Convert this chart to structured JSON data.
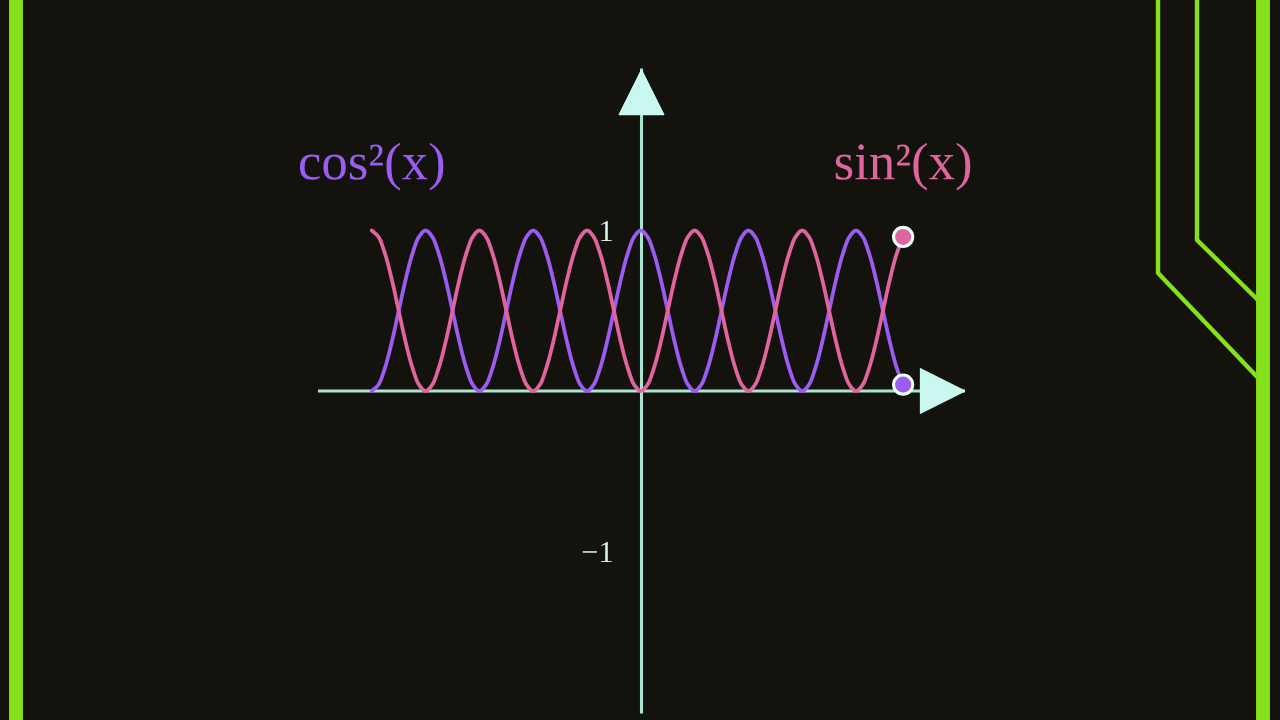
{
  "chart_data": {
    "type": "line",
    "categories": [
      null,
      null,
      null,
      null,
      null,
      null,
      null,
      null,
      null,
      null,
      null,
      null,
      null,
      null,
      null,
      null,
      null,
      null,
      null,
      null,
      null,
      null,
      null,
      null,
      null,
      null,
      null,
      null,
      null,
      null,
      null,
      null,
      null,
      null,
      null,
      null,
      null,
      null,
      null,
      null,
      null,
      null,
      null,
      null,
      null,
      null,
      null,
      null,
      null,
      null,
      null,
      null,
      null,
      null,
      null,
      null,
      null,
      null,
      null,
      null,
      null,
      null,
      null,
      null,
      null,
      null,
      null,
      null,
      null,
      null,
      null,
      null,
      null,
      null,
      null,
      null,
      null,
      null,
      null,
      null
    ],
    "series": [
      {
        "name": "cos²(x)",
        "color": "#9b5cf2",
        "values": [
          0,
          0.04,
          0.15,
          0.31,
          0.5,
          0.69,
          0.85,
          0.96,
          1,
          0.96,
          0.85,
          0.69,
          0.5,
          0.31,
          0.15,
          0.04,
          0,
          0.04,
          0.15,
          0.31,
          0.5,
          0.69,
          0.85,
          0.96,
          1,
          0.96,
          0.85,
          0.69,
          0.5,
          0.31,
          0.15,
          0.04,
          0,
          0.04,
          0.15,
          0.31,
          0.5,
          0.69,
          0.85,
          0.96,
          1,
          0.96,
          0.85,
          0.69,
          0.5,
          0.31,
          0.15,
          0.04,
          0,
          0.04,
          0.15,
          0.31,
          0.5,
          0.69,
          0.85,
          0.96,
          1,
          0.96,
          0.85,
          0.69,
          0.5,
          0.31,
          0.15,
          0.04,
          0,
          0.04,
          0.15,
          0.31,
          0.5,
          0.69,
          0.85,
          0.96,
          1,
          0.96,
          0.85,
          0.69,
          0.5,
          0.31,
          0.15,
          0.04
        ]
      },
      {
        "name": "sin²(x)",
        "color": "#e0649e",
        "values": [
          1,
          0.96,
          0.85,
          0.69,
          0.5,
          0.31,
          0.15,
          0.04,
          0,
          0.04,
          0.15,
          0.31,
          0.5,
          0.69,
          0.85,
          0.96,
          1,
          0.96,
          0.85,
          0.69,
          0.5,
          0.31,
          0.15,
          0.04,
          0,
          0.04,
          0.15,
          0.31,
          0.5,
          0.69,
          0.85,
          0.96,
          1,
          0.96,
          0.85,
          0.69,
          0.5,
          0.31,
          0.15,
          0.04,
          0,
          0.04,
          0.15,
          0.31,
          0.5,
          0.69,
          0.85,
          0.96,
          1,
          0.96,
          0.85,
          0.69,
          0.5,
          0.31,
          0.15,
          0.04,
          0,
          0.04,
          0.15,
          0.31,
          0.5,
          0.69,
          0.85,
          0.96,
          1,
          0.96,
          0.85,
          0.69,
          0.5,
          0.31,
          0.15,
          0.04,
          0,
          0.04,
          0.15,
          0.31,
          0.5,
          0.69,
          0.85,
          0.96
        ]
      }
    ],
    "ylim": [
      -2,
      2
    ],
    "yticks": [
      {
        "value": -1,
        "label": "−1"
      },
      1
    ],
    "ref_lines": [
      {
        "axis": "y",
        "value": 0,
        "color": "#a9e4d2"
      }
    ],
    "tick_labels": "y"
  }
}
